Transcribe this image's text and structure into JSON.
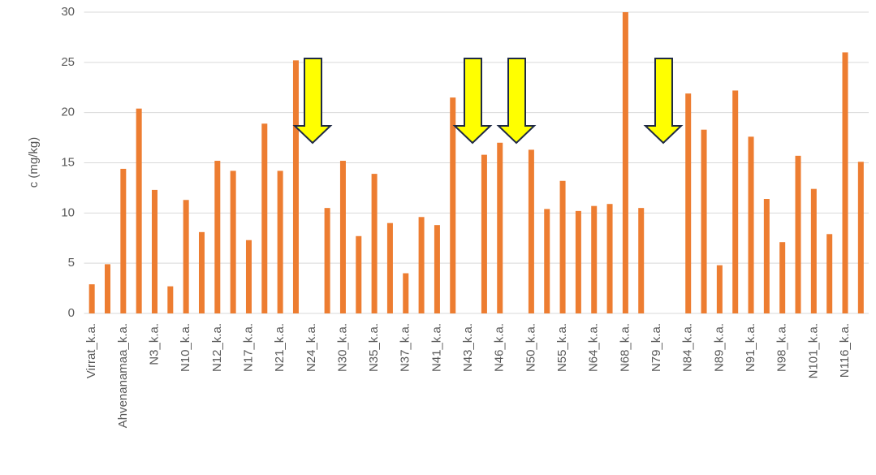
{
  "chart_data": {
    "type": "bar",
    "y_label": "c (mg/kg)",
    "categories": [
      "Virrat_k.a.",
      null,
      "Ahvenanamaa_k.a.",
      null,
      "N3_k.a.",
      null,
      "N10_k.a.",
      null,
      "N12_k.a.",
      null,
      "N17_k.a.",
      null,
      "N21_k.a.",
      null,
      "N24_k.a.",
      null,
      "N30_k.a.",
      null,
      "N35_k.a.",
      null,
      "N37_k.a.",
      null,
      "N41_k.a.",
      null,
      "N43_k.a.",
      null,
      "N46_k.a.",
      null,
      "N50_k.a.",
      null,
      "N55_k.a.",
      null,
      "N64_k.a.",
      null,
      "N68_k.a.",
      null,
      "N79_k.a.",
      null,
      "N84_k.a.",
      null,
      "N89_k.a.",
      null,
      "N91_k.a.",
      null,
      "N98_k.a.",
      null,
      "N101_k.a.",
      null,
      "N116_k.a.",
      null
    ],
    "values": [
      2.9,
      4.9,
      14.4,
      20.4,
      12.3,
      2.7,
      11.3,
      8.1,
      15.2,
      14.2,
      7.3,
      18.9,
      14.2,
      25.2,
      null,
      10.5,
      15.2,
      7.7,
      13.9,
      9.0,
      4.0,
      9.6,
      8.8,
      21.5,
      null,
      15.8,
      17.0,
      null,
      16.3,
      10.4,
      13.2,
      10.2,
      10.7,
      10.9,
      30,
      10.5,
      null,
      null,
      21.9,
      18.3,
      4.8,
      22.2,
      17.6,
      11.4,
      7.1,
      15.7,
      12.4,
      7.9,
      26.0,
      15.1
    ],
    "color": "#ed7d31",
    "ylim": [
      0,
      30
    ],
    "yticks": [
      0,
      5,
      10,
      15,
      20,
      25,
      30
    ],
    "grid": true
  }
}
